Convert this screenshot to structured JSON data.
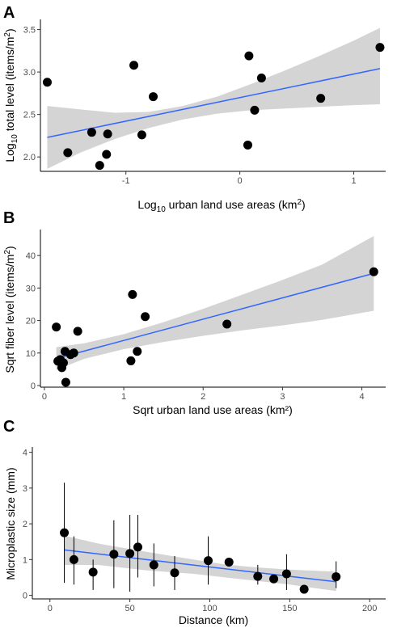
{
  "chart_data": [
    {
      "panel": "A",
      "type": "scatter",
      "xlabel": "Log10 urban land use areas (km2)",
      "xlabel_parts": {
        "a": "Log",
        "sub": "10",
        "b": " urban land use areas (km",
        "sup": "2",
        "c": ")"
      },
      "ylabel": "Log10 total level (items/m2)",
      "ylabel_parts": {
        "a": "Log",
        "sub": "10",
        "b": " total level (items/m",
        "sup": "2",
        "c": ")"
      },
      "xlim": [
        -1.75,
        1.28
      ],
      "ylim": [
        1.83,
        3.62
      ],
      "xticks": [
        -1,
        0,
        1
      ],
      "yticks": [
        2.0,
        2.5,
        3.0,
        3.5
      ],
      "ytick_labels": [
        "2.0",
        "2.5",
        "3.0",
        "3.5"
      ],
      "points": [
        {
          "x": -1.69,
          "y": 2.88
        },
        {
          "x": -1.51,
          "y": 2.05
        },
        {
          "x": -1.3,
          "y": 2.29
        },
        {
          "x": -1.23,
          "y": 1.9
        },
        {
          "x": -1.17,
          "y": 2.03
        },
        {
          "x": -1.16,
          "y": 2.27
        },
        {
          "x": -0.93,
          "y": 3.08
        },
        {
          "x": -0.86,
          "y": 2.26
        },
        {
          "x": -0.76,
          "y": 2.71
        },
        {
          "x": 0.07,
          "y": 2.14
        },
        {
          "x": 0.08,
          "y": 3.19
        },
        {
          "x": 0.13,
          "y": 2.55
        },
        {
          "x": 0.19,
          "y": 2.93
        },
        {
          "x": 0.71,
          "y": 2.69
        },
        {
          "x": 1.23,
          "y": 3.29
        }
      ],
      "fit_line": {
        "x": [
          -1.69,
          1.23
        ],
        "y": [
          2.23,
          3.04
        ]
      },
      "confidence_band": {
        "x": [
          -1.69,
          -1.4,
          -1.1,
          -0.8,
          -0.5,
          -0.2,
          0.1,
          0.4,
          0.7,
          1.0,
          1.23
        ],
        "lower": [
          1.86,
          2.05,
          2.21,
          2.34,
          2.44,
          2.51,
          2.55,
          2.57,
          2.59,
          2.61,
          2.62
        ],
        "upper": [
          2.6,
          2.56,
          2.52,
          2.53,
          2.6,
          2.71,
          2.86,
          3.02,
          3.19,
          3.37,
          3.52
        ]
      }
    },
    {
      "panel": "B",
      "type": "scatter",
      "xlabel": "Sqrt urban land use areas (km²)",
      "ylabel": "Sqrt fiber level (items/m2)",
      "ylabel_parts": {
        "a": "Sqrt fiber level (items/m",
        "sup": "2",
        "c": ")"
      },
      "xlim": [
        -0.05,
        4.3
      ],
      "ylim": [
        -0.5,
        48
      ],
      "xticks": [
        0,
        1,
        2,
        3,
        4
      ],
      "yticks": [
        0,
        10,
        20,
        30,
        40
      ],
      "points": [
        {
          "x": 0.15,
          "y": 18.0
        },
        {
          "x": 0.17,
          "y": 7.5
        },
        {
          "x": 0.2,
          "y": 8.0
        },
        {
          "x": 0.22,
          "y": 5.5
        },
        {
          "x": 0.24,
          "y": 7.0
        },
        {
          "x": 0.26,
          "y": 10.5
        },
        {
          "x": 0.27,
          "y": 1.0
        },
        {
          "x": 0.33,
          "y": 9.5
        },
        {
          "x": 0.37,
          "y": 10.0
        },
        {
          "x": 0.42,
          "y": 16.7
        },
        {
          "x": 1.09,
          "y": 7.6
        },
        {
          "x": 1.11,
          "y": 28.0
        },
        {
          "x": 1.17,
          "y": 10.5
        },
        {
          "x": 1.27,
          "y": 21.2
        },
        {
          "x": 2.3,
          "y": 18.9
        },
        {
          "x": 4.15,
          "y": 35.0
        }
      ],
      "fit_line": {
        "x": [
          0.15,
          4.15
        ],
        "y": [
          8.3,
          34.5
        ]
      },
      "confidence_band": {
        "x": [
          0.15,
          0.5,
          1.0,
          1.5,
          2.0,
          2.5,
          3.0,
          3.5,
          4.15
        ],
        "lower": [
          4.8,
          8.2,
          11.2,
          13.4,
          15.3,
          17.0,
          18.5,
          20.2,
          23.0
        ],
        "upper": [
          11.8,
          13.0,
          15.8,
          19.5,
          23.6,
          28.0,
          32.5,
          37.2,
          46.0
        ]
      }
    },
    {
      "panel": "C",
      "type": "scatter",
      "xlabel": "Distance (km)",
      "ylabel": "Microplastic size (mm)",
      "xlim": [
        -11,
        210
      ],
      "ylim": [
        -0.1,
        4.15
      ],
      "xticks": [
        0,
        50,
        100,
        150,
        200
      ],
      "yticks": [
        0,
        1,
        2,
        3,
        4
      ],
      "points": [
        {
          "x": 9,
          "y": 1.75,
          "lo": 0.35,
          "hi": 3.15
        },
        {
          "x": 15,
          "y": 1.0,
          "lo": 0.3,
          "hi": 1.65
        },
        {
          "x": 27,
          "y": 0.65,
          "lo": 0.15,
          "hi": 1.0
        },
        {
          "x": 40,
          "y": 1.15,
          "lo": 0.2,
          "hi": 2.1
        },
        {
          "x": 50,
          "y": 1.17,
          "lo": 0.1,
          "hi": 2.25
        },
        {
          "x": 55,
          "y": 1.35,
          "lo": 0.5,
          "hi": 2.25
        },
        {
          "x": 65,
          "y": 0.85,
          "lo": 0.25,
          "hi": 1.45
        },
        {
          "x": 78,
          "y": 0.63,
          "lo": 0.15,
          "hi": 1.1
        },
        {
          "x": 99,
          "y": 0.97,
          "lo": 0.3,
          "hi": 1.65
        },
        {
          "x": 112,
          "y": 0.93,
          "lo": 0.8,
          "hi": 1.05
        },
        {
          "x": 130,
          "y": 0.53,
          "lo": 0.3,
          "hi": 0.85
        },
        {
          "x": 140,
          "y": 0.46,
          "lo": 0.35,
          "hi": 0.58
        },
        {
          "x": 148,
          "y": 0.6,
          "lo": 0.15,
          "hi": 1.15
        },
        {
          "x": 159,
          "y": 0.17,
          "lo": 0.08,
          "hi": 0.26
        },
        {
          "x": 179,
          "y": 0.52,
          "lo": 0.2,
          "hi": 0.95
        }
      ],
      "fit_line": {
        "x": [
          9,
          179
        ],
        "y": [
          1.27,
          0.38
        ]
      },
      "confidence_band": {
        "x": [
          9,
          30,
          60,
          90,
          110,
          130,
          150,
          179
        ],
        "lower": [
          0.85,
          0.85,
          0.7,
          0.6,
          0.5,
          0.4,
          0.3,
          0.12
        ],
        "upper": [
          1.67,
          1.45,
          1.22,
          1.0,
          0.86,
          0.78,
          0.72,
          0.66
        ]
      }
    }
  ],
  "colors": {
    "point": "#000000",
    "fit_line": "#3366ff",
    "band": "#d4d4d4",
    "axis": "#000000",
    "tick_text": "#4d4d4d"
  }
}
